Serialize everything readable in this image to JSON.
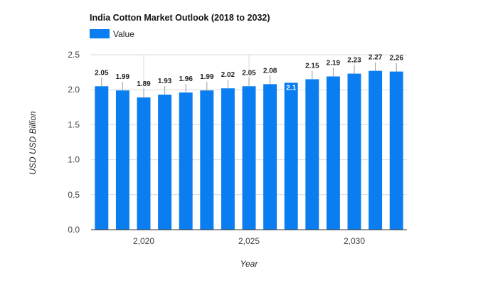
{
  "chart_data": {
    "type": "bar",
    "title": "India Cotton Market Outlook (2018 to 2032)",
    "legend": [
      "Value"
    ],
    "legend_position": "top-left",
    "xlabel": "Year",
    "ylabel": "USD USD Billion",
    "x": [
      2018,
      2019,
      2020,
      2021,
      2022,
      2023,
      2024,
      2025,
      2026,
      2027,
      2028,
      2029,
      2030,
      2031,
      2032
    ],
    "values": [
      2.05,
      1.99,
      1.89,
      1.93,
      1.96,
      1.99,
      2.02,
      2.05,
      2.08,
      2.1,
      2.15,
      2.19,
      2.23,
      2.27,
      2.26
    ],
    "value_labels": [
      "2.05",
      "1.99",
      "1.89",
      "1.93",
      "1.96",
      "1.99",
      "2.02",
      "2.05",
      "2.08",
      "2.1",
      "2.15",
      "2.19",
      "2.23",
      "2.27",
      "2.26"
    ],
    "x_ticks": [
      {
        "value": 2020,
        "label": "2,020"
      },
      {
        "value": 2025,
        "label": "2,025"
      },
      {
        "value": 2030,
        "label": "2,030"
      }
    ],
    "y_ticks": [
      {
        "value": 0,
        "label": "0.0"
      },
      {
        "value": 0.5,
        "label": "0.5"
      },
      {
        "value": 1.0,
        "label": "1.0"
      },
      {
        "value": 1.5,
        "label": "1.5"
      },
      {
        "value": 2.0,
        "label": "2.0"
      },
      {
        "value": 2.5,
        "label": "2.5"
      }
    ],
    "ylim": [
      0,
      2.5
    ],
    "grid": true,
    "bar_color": "#0a7df0",
    "grid_color": "#d9d9d9",
    "axis_color": "#333333"
  }
}
